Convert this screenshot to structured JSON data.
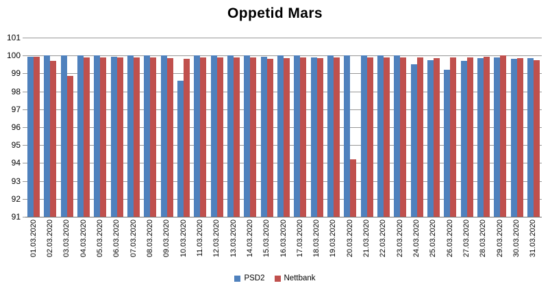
{
  "chart_data": {
    "type": "bar",
    "title": "Oppetid Mars",
    "xlabel": "",
    "ylabel": "",
    "ylim": [
      91,
      101
    ],
    "y_ticks": [
      "101",
      "100",
      "99",
      "98",
      "97",
      "96",
      "95",
      "94",
      "93",
      "92",
      "91"
    ],
    "grid": "horizontal gridlines on",
    "legend_position": "bottom-center",
    "categories": [
      "01.03.2020",
      "02.03.2020",
      "03.03.2020",
      "04.03.2020",
      "05.03.2020",
      "06.03.2020",
      "07.03.2020",
      "08.03.2020",
      "09.03.2020",
      "10.03.2020",
      "11.03.2020",
      "12.03.2020",
      "13.03.2020",
      "14.03.2020",
      "15.03.2020",
      "16.03.2020",
      "17.03.2020",
      "18.03.2020",
      "19.03.2020",
      "20.03.2020",
      "21.03.2020",
      "22.03.2020",
      "23.03.2020",
      "24.03.2020",
      "25.03.2020",
      "26.03.2020",
      "27.03.2020",
      "28.03.2020",
      "29.03.2020",
      "30.03.2020",
      "31.03.2020"
    ],
    "series": [
      {
        "name": "PSD2",
        "color": "#4F81BD",
        "values": [
          99.95,
          100,
          100,
          100,
          100,
          99.95,
          100,
          100,
          100,
          98.6,
          100,
          100,
          100,
          100,
          99.95,
          100,
          100,
          99.9,
          100,
          100,
          100,
          100,
          100,
          99.5,
          99.75,
          99.2,
          99.7,
          99.85,
          99.9,
          99.8,
          99.85
        ]
      },
      {
        "name": "Nettbank",
        "color": "#C0504D",
        "values": [
          99.95,
          99.7,
          98.85,
          99.9,
          99.9,
          99.9,
          99.9,
          99.9,
          99.85,
          99.8,
          99.9,
          99.9,
          99.9,
          99.9,
          99.8,
          99.85,
          99.9,
          99.85,
          99.9,
          94.2,
          99.9,
          99.9,
          99.9,
          99.9,
          99.85,
          99.9,
          99.9,
          99.95,
          100,
          99.85,
          99.75
        ]
      }
    ],
    "colors": {
      "background": "#FFFFFF",
      "gridline": "#969696",
      "axis_line": "#707070",
      "text": "#000000"
    }
  }
}
